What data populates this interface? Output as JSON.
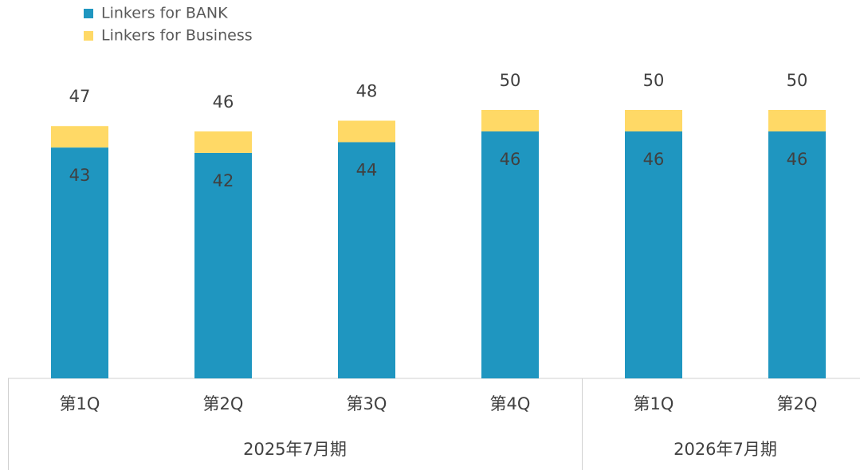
{
  "chart_data": {
    "type": "stacked_bar",
    "groups": [
      {
        "name": "2025年7月期",
        "categories": [
          "第1Q",
          "第2Q",
          "第3Q",
          "第4Q"
        ]
      },
      {
        "name": "2026年7月期",
        "categories": [
          "第1Q",
          "第2Q"
        ]
      }
    ],
    "series": [
      {
        "name": "Linkers for BANK",
        "color": "#1f96c0",
        "values": [
          43,
          42,
          44,
          46,
          46,
          46
        ]
      },
      {
        "name": "Linkers for Business",
        "color": "#ffd966",
        "values": [
          4,
          4,
          4,
          4,
          4,
          4
        ]
      }
    ],
    "totals": [
      47,
      46,
      48,
      50,
      50,
      50
    ],
    "ylim": [
      0,
      50
    ]
  }
}
